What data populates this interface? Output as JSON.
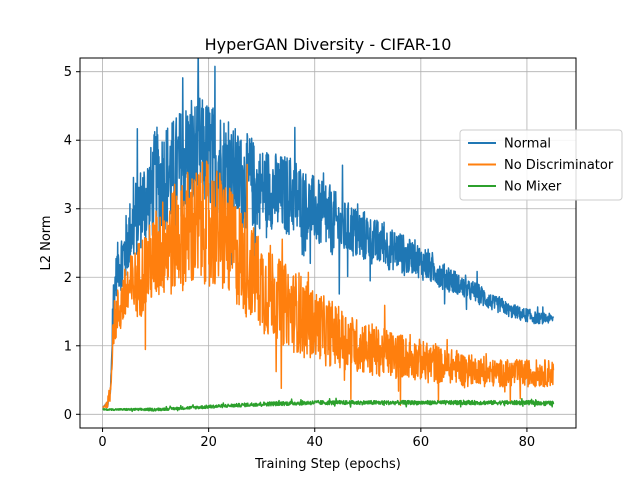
{
  "chart_data": {
    "type": "line",
    "title": "HyperGAN Diversity - CIFAR-10",
    "xlabel": "Training Step (epochs)",
    "ylabel": "L2 Norm",
    "xlim": [
      -4.25,
      89.25
    ],
    "ylim": [
      -0.2,
      5.2
    ],
    "xticks": [
      0,
      20,
      40,
      60,
      80
    ],
    "yticks": [
      0,
      1,
      2,
      3,
      4,
      5
    ],
    "grid": true,
    "legend_position": "center-right",
    "series": [
      {
        "name": "Normal",
        "color": "#1f77b4",
        "x": [
          0,
          1,
          1.5,
          2,
          2.5,
          3,
          4,
          5,
          6,
          7,
          8,
          9,
          10,
          11,
          12,
          13,
          14,
          15,
          16,
          17,
          18,
          19,
          20,
          21,
          22,
          23,
          24,
          25,
          26,
          27,
          28,
          29,
          30,
          31,
          32,
          33,
          34,
          35,
          36,
          37,
          38,
          39,
          40,
          41,
          42,
          43,
          44,
          45,
          46,
          47,
          48,
          49,
          50,
          51,
          52,
          53,
          54,
          55,
          56,
          57,
          58,
          59,
          60,
          61,
          62,
          63,
          64,
          65,
          66,
          67,
          68,
          69,
          70,
          71,
          72,
          73,
          74,
          75,
          76,
          77,
          78,
          79,
          80,
          81,
          82,
          83,
          84,
          85
        ],
        "y": [
          0.1,
          0.15,
          0.3,
          1.6,
          2.0,
          2.2,
          2.3,
          2.6,
          2.8,
          3.0,
          3.1,
          3.2,
          3.4,
          3.4,
          3.5,
          3.5,
          3.6,
          3.7,
          3.8,
          3.7,
          3.9,
          3.8,
          3.8,
          3.7,
          3.7,
          3.6,
          3.5,
          3.5,
          3.4,
          3.4,
          3.4,
          3.3,
          3.3,
          3.3,
          3.3,
          3.2,
          3.2,
          3.2,
          3.2,
          3.1,
          3.1,
          3.0,
          3.0,
          2.9,
          2.9,
          2.8,
          2.8,
          2.7,
          2.7,
          2.7,
          2.6,
          2.6,
          2.6,
          2.5,
          2.5,
          2.5,
          2.4,
          2.4,
          2.4,
          2.3,
          2.3,
          2.3,
          2.2,
          2.2,
          2.1,
          2.1,
          2.0,
          2.0,
          1.95,
          1.9,
          1.85,
          1.8,
          1.8,
          1.75,
          1.7,
          1.65,
          1.6,
          1.6,
          1.55,
          1.5,
          1.5,
          1.45,
          1.45,
          1.42,
          1.4,
          1.4,
          1.4,
          1.4
        ],
        "noise": [
          0,
          0.05,
          0.1,
          0.4,
          0.3,
          0.4,
          0.5,
          0.5,
          0.6,
          0.6,
          0.7,
          0.7,
          0.8,
          0.8,
          0.8,
          0.8,
          0.8,
          0.8,
          0.8,
          0.8,
          0.8,
          0.8,
          0.8,
          0.8,
          0.8,
          0.8,
          0.7,
          0.7,
          0.7,
          0.7,
          0.7,
          0.6,
          0.6,
          0.6,
          0.6,
          0.6,
          0.6,
          0.6,
          0.6,
          0.6,
          0.5,
          0.5,
          0.5,
          0.5,
          0.5,
          0.5,
          0.45,
          0.45,
          0.4,
          0.4,
          0.4,
          0.4,
          0.35,
          0.35,
          0.35,
          0.3,
          0.3,
          0.3,
          0.3,
          0.3,
          0.25,
          0.25,
          0.25,
          0.25,
          0.2,
          0.2,
          0.2,
          0.2,
          0.2,
          0.15,
          0.15,
          0.15,
          0.15,
          0.15,
          0.15,
          0.12,
          0.12,
          0.12,
          0.1,
          0.1,
          0.1,
          0.1,
          0.1,
          0.1,
          0.08,
          0.08,
          0.08,
          0.05
        ]
      },
      {
        "name": "No Discriminator",
        "color": "#ff7f0e",
        "x": [
          0,
          1,
          1.5,
          2,
          3,
          4,
          5,
          6,
          7,
          8,
          9,
          10,
          11,
          12,
          13,
          14,
          15,
          16,
          17,
          18,
          19,
          20,
          21,
          22,
          23,
          24,
          25,
          26,
          27,
          28,
          29,
          30,
          31,
          32,
          33,
          34,
          35,
          36,
          37,
          38,
          39,
          40,
          41,
          42,
          43,
          44,
          45,
          46,
          47,
          48,
          49,
          50,
          51,
          52,
          53,
          54,
          55,
          56,
          57,
          58,
          59,
          60,
          61,
          62,
          63,
          64,
          65,
          66,
          67,
          68,
          69,
          70,
          71,
          72,
          73,
          74,
          75,
          76,
          77,
          78,
          79,
          80,
          81,
          82,
          83,
          84,
          85
        ],
        "y": [
          0.1,
          0.15,
          0.3,
          1.3,
          1.5,
          1.7,
          1.8,
          1.9,
          2.0,
          2.1,
          2.2,
          2.3,
          2.4,
          2.5,
          2.5,
          2.6,
          2.6,
          2.7,
          2.7,
          2.7,
          2.8,
          2.8,
          2.7,
          2.7,
          2.6,
          2.5,
          2.4,
          2.3,
          2.2,
          2.1,
          2.0,
          1.9,
          1.8,
          1.8,
          1.7,
          1.6,
          1.6,
          1.5,
          1.5,
          1.4,
          1.4,
          1.3,
          1.3,
          1.2,
          1.2,
          1.15,
          1.1,
          1.1,
          1.05,
          1.0,
          1.0,
          0.95,
          0.95,
          0.9,
          0.9,
          0.9,
          0.85,
          0.85,
          0.85,
          0.8,
          0.8,
          0.8,
          0.75,
          0.75,
          0.75,
          0.7,
          0.7,
          0.7,
          0.7,
          0.65,
          0.65,
          0.65,
          0.65,
          0.6,
          0.6,
          0.6,
          0.6,
          0.6,
          0.6,
          0.6,
          0.6,
          0.6,
          0.6,
          0.6,
          0.6,
          0.6,
          0.6
        ],
        "noise": [
          0,
          0.05,
          0.1,
          0.3,
          0.4,
          0.4,
          0.5,
          0.5,
          0.6,
          0.6,
          0.6,
          0.7,
          0.7,
          0.8,
          0.8,
          0.8,
          0.8,
          0.9,
          0.9,
          0.9,
          0.9,
          0.9,
          0.9,
          0.9,
          0.9,
          0.8,
          0.8,
          0.8,
          0.8,
          0.7,
          0.7,
          0.7,
          0.7,
          0.7,
          0.6,
          0.6,
          0.6,
          0.6,
          0.6,
          0.6,
          0.5,
          0.5,
          0.5,
          0.5,
          0.5,
          0.45,
          0.45,
          0.45,
          0.4,
          0.4,
          0.4,
          0.4,
          0.4,
          0.35,
          0.35,
          0.35,
          0.35,
          0.35,
          0.3,
          0.3,
          0.3,
          0.3,
          0.3,
          0.3,
          0.3,
          0.25,
          0.25,
          0.25,
          0.25,
          0.25,
          0.25,
          0.2,
          0.2,
          0.2,
          0.2,
          0.2,
          0.2,
          0.2,
          0.2,
          0.2,
          0.2,
          0.2,
          0.2,
          0.2,
          0.2,
          0.2,
          0.2
        ]
      },
      {
        "name": "No Mixer",
        "color": "#2ca02c",
        "x": [
          0,
          5,
          10,
          15,
          20,
          25,
          30,
          35,
          40,
          45,
          50,
          55,
          60,
          65,
          70,
          75,
          80,
          85
        ],
        "y": [
          0.07,
          0.07,
          0.07,
          0.09,
          0.11,
          0.13,
          0.15,
          0.16,
          0.17,
          0.17,
          0.17,
          0.17,
          0.17,
          0.17,
          0.17,
          0.17,
          0.17,
          0.16
        ],
        "noise": [
          0.01,
          0.015,
          0.02,
          0.02,
          0.025,
          0.025,
          0.03,
          0.03,
          0.03,
          0.03,
          0.03,
          0.03,
          0.03,
          0.03,
          0.03,
          0.03,
          0.03,
          0.03
        ]
      }
    ]
  }
}
